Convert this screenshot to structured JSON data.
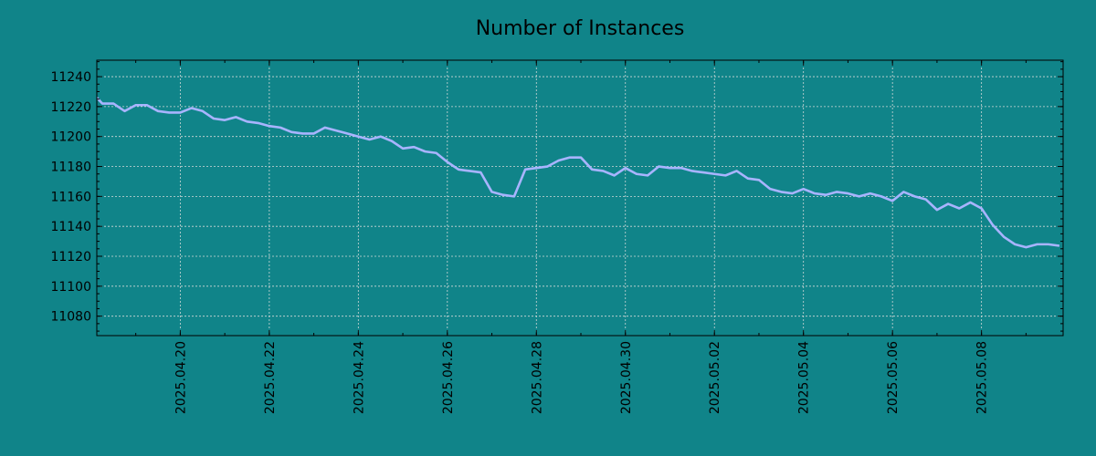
{
  "chart_data": {
    "type": "line",
    "title": "Number of Instances",
    "xlabel": "",
    "ylabel": "",
    "grid": true,
    "x_axis_type": "date",
    "xlim": [
      "2025-04-18T03:00",
      "2025-05-09T20:00"
    ],
    "ylim": [
      11067,
      11251
    ],
    "x_ticks": [
      "2025.04.20",
      "2025.04.22",
      "2025.04.24",
      "2025.04.26",
      "2025.04.28",
      "2025.04.30",
      "2025.05.02",
      "2025.05.04",
      "2025.05.06",
      "2025.05.08"
    ],
    "y_ticks": [
      11080,
      11100,
      11120,
      11140,
      11160,
      11180,
      11200,
      11220,
      11240
    ],
    "colors": {
      "background": "#108489",
      "line": "#a8b4ff",
      "grid": "#cfd8d8",
      "axis": "#000000"
    },
    "series": [
      {
        "points": [
          [
            "2025-04-18T03:00",
            11226
          ],
          [
            "2025-04-18T06:00",
            11222
          ],
          [
            "2025-04-18T12:00",
            11222
          ],
          [
            "2025-04-18T18:00",
            11217
          ],
          [
            "2025-04-19T00:00",
            11221
          ],
          [
            "2025-04-19T06:00",
            11221
          ],
          [
            "2025-04-19T12:00",
            11217
          ],
          [
            "2025-04-19T18:00",
            11216
          ],
          [
            "2025-04-20T00:00",
            11216
          ],
          [
            "2025-04-20T06:00",
            11219
          ],
          [
            "2025-04-20T12:00",
            11217
          ],
          [
            "2025-04-20T18:00",
            11212
          ],
          [
            "2025-04-21T00:00",
            11211
          ],
          [
            "2025-04-21T06:00",
            11213
          ],
          [
            "2025-04-21T12:00",
            11210
          ],
          [
            "2025-04-21T18:00",
            11209
          ],
          [
            "2025-04-22T00:00",
            11207
          ],
          [
            "2025-04-22T06:00",
            11206
          ],
          [
            "2025-04-22T12:00",
            11203
          ],
          [
            "2025-04-22T18:00",
            11202
          ],
          [
            "2025-04-23T00:00",
            11202
          ],
          [
            "2025-04-23T06:00",
            11206
          ],
          [
            "2025-04-23T12:00",
            11204
          ],
          [
            "2025-04-23T18:00",
            11202
          ],
          [
            "2025-04-24T00:00",
            11200
          ],
          [
            "2025-04-24T06:00",
            11198
          ],
          [
            "2025-04-24T12:00",
            11200
          ],
          [
            "2025-04-24T18:00",
            11197
          ],
          [
            "2025-04-25T00:00",
            11192
          ],
          [
            "2025-04-25T06:00",
            11193
          ],
          [
            "2025-04-25T12:00",
            11190
          ],
          [
            "2025-04-25T18:00",
            11189
          ],
          [
            "2025-04-26T00:00",
            11183
          ],
          [
            "2025-04-26T06:00",
            11178
          ],
          [
            "2025-04-26T12:00",
            11177
          ],
          [
            "2025-04-26T18:00",
            11176
          ],
          [
            "2025-04-27T00:00",
            11163
          ],
          [
            "2025-04-27T06:00",
            11161
          ],
          [
            "2025-04-27T12:00",
            11160
          ],
          [
            "2025-04-27T18:00",
            11178
          ],
          [
            "2025-04-28T00:00",
            11179
          ],
          [
            "2025-04-28T06:00",
            11180
          ],
          [
            "2025-04-28T12:00",
            11184
          ],
          [
            "2025-04-28T18:00",
            11186
          ],
          [
            "2025-04-29T00:00",
            11186
          ],
          [
            "2025-04-29T06:00",
            11178
          ],
          [
            "2025-04-29T12:00",
            11177
          ],
          [
            "2025-04-29T18:00",
            11174
          ],
          [
            "2025-04-30T00:00",
            11179
          ],
          [
            "2025-04-30T06:00",
            11175
          ],
          [
            "2025-04-30T12:00",
            11174
          ],
          [
            "2025-04-30T18:00",
            11180
          ],
          [
            "2025-05-01T00:00",
            11179
          ],
          [
            "2025-05-01T06:00",
            11179
          ],
          [
            "2025-05-01T12:00",
            11177
          ],
          [
            "2025-05-01T18:00",
            11176
          ],
          [
            "2025-05-02T00:00",
            11175
          ],
          [
            "2025-05-02T06:00",
            11174
          ],
          [
            "2025-05-02T12:00",
            11177
          ],
          [
            "2025-05-02T18:00",
            11172
          ],
          [
            "2025-05-03T00:00",
            11171
          ],
          [
            "2025-05-03T06:00",
            11165
          ],
          [
            "2025-05-03T12:00",
            11163
          ],
          [
            "2025-05-03T18:00",
            11162
          ],
          [
            "2025-05-04T00:00",
            11165
          ],
          [
            "2025-05-04T06:00",
            11162
          ],
          [
            "2025-05-04T12:00",
            11161
          ],
          [
            "2025-05-04T18:00",
            11163
          ],
          [
            "2025-05-05T00:00",
            11162
          ],
          [
            "2025-05-05T06:00",
            11160
          ],
          [
            "2025-05-05T12:00",
            11162
          ],
          [
            "2025-05-05T18:00",
            11160
          ],
          [
            "2025-05-06T00:00",
            11157
          ],
          [
            "2025-05-06T06:00",
            11163
          ],
          [
            "2025-05-06T12:00",
            11160
          ],
          [
            "2025-05-06T18:00",
            11158
          ],
          [
            "2025-05-07T00:00",
            11151
          ],
          [
            "2025-05-07T06:00",
            11155
          ],
          [
            "2025-05-07T12:00",
            11152
          ],
          [
            "2025-05-07T18:00",
            11156
          ],
          [
            "2025-05-08T00:00",
            11152
          ],
          [
            "2025-05-08T06:00",
            11141
          ],
          [
            "2025-05-08T12:00",
            11133
          ],
          [
            "2025-05-08T18:00",
            11128
          ],
          [
            "2025-05-09T00:00",
            11126
          ],
          [
            "2025-05-09T06:00",
            11128
          ],
          [
            "2025-05-09T12:00",
            11128
          ],
          [
            "2025-05-09T18:00",
            11127
          ]
        ]
      }
    ]
  }
}
